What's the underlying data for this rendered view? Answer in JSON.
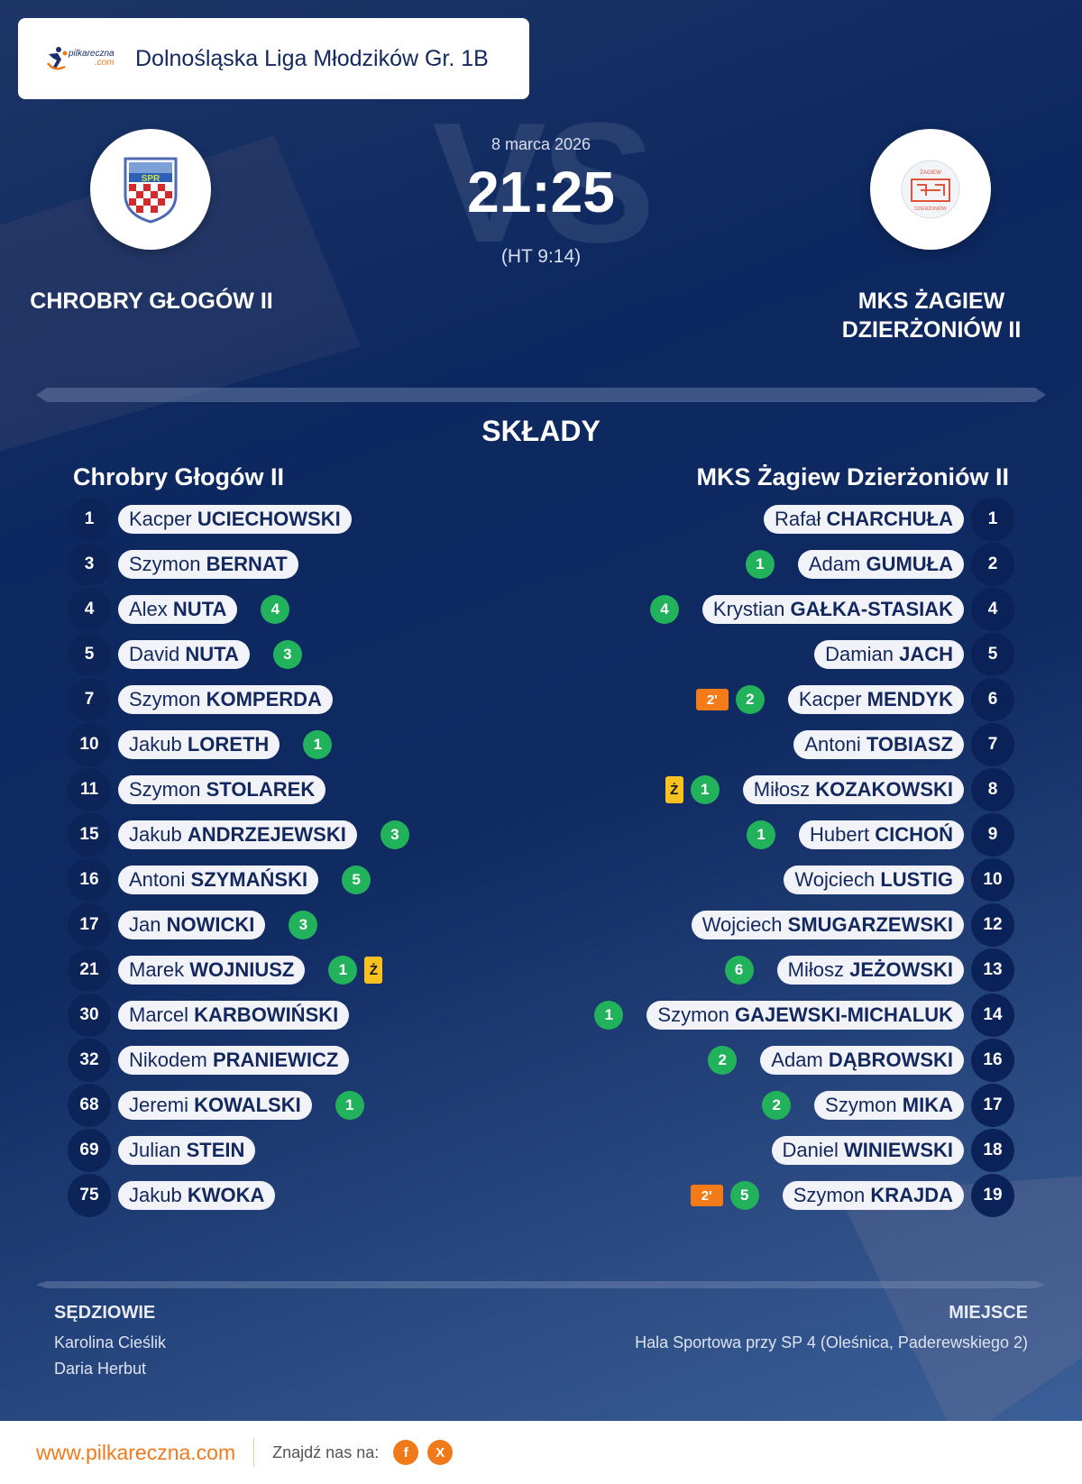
{
  "header": {
    "brand": {
      "name": "pilkareczna",
      "suffix": ".com"
    },
    "league": "Dolnośląska Liga Młodzików Gr. 1B"
  },
  "match": {
    "date": "8 marca 2026",
    "score": "21:25",
    "halftime": "(HT 9:14)",
    "vs_watermark": "VS",
    "home": {
      "name": "CHROBRY GŁOGÓW II",
      "crest": "Chrobry Głogów crest"
    },
    "away": {
      "name": "MKS ŻAGIEW DZIERŻONIÓW II",
      "crest": "Żagiew Dzierżoniów crest"
    }
  },
  "lineups": {
    "title": "SKŁADY",
    "home": {
      "team": "Chrobry Głogów II",
      "players": [
        {
          "num": "1",
          "first": "Kacper",
          "last": "UCIECHOWSKI",
          "goals": null,
          "yellow": false,
          "suspension": null
        },
        {
          "num": "3",
          "first": "Szymon",
          "last": "BERNAT",
          "goals": null,
          "yellow": false,
          "suspension": null
        },
        {
          "num": "4",
          "first": "Alex",
          "last": "NUTA",
          "goals": "4",
          "yellow": false,
          "suspension": null
        },
        {
          "num": "5",
          "first": "David",
          "last": "NUTA",
          "goals": "3",
          "yellow": false,
          "suspension": null
        },
        {
          "num": "7",
          "first": "Szymon",
          "last": "KOMPERDA",
          "goals": null,
          "yellow": false,
          "suspension": null
        },
        {
          "num": "10",
          "first": "Jakub",
          "last": "LORETH",
          "goals": "1",
          "yellow": false,
          "suspension": null
        },
        {
          "num": "11",
          "first": "Szymon",
          "last": "STOLAREK",
          "goals": null,
          "yellow": false,
          "suspension": null
        },
        {
          "num": "15",
          "first": "Jakub",
          "last": "ANDRZEJEWSKI",
          "goals": "3",
          "yellow": false,
          "suspension": null
        },
        {
          "num": "16",
          "first": "Antoni",
          "last": "SZYMAŃSKI",
          "goals": "5",
          "yellow": false,
          "suspension": null
        },
        {
          "num": "17",
          "first": "Jan",
          "last": "NOWICKI",
          "goals": "3",
          "yellow": false,
          "suspension": null
        },
        {
          "num": "21",
          "first": "Marek",
          "last": "WOJNIUSZ",
          "goals": "1",
          "yellow": true,
          "suspension": null
        },
        {
          "num": "30",
          "first": "Marcel",
          "last": "KARBOWIŃSKI",
          "goals": null,
          "yellow": false,
          "suspension": null
        },
        {
          "num": "32",
          "first": "Nikodem",
          "last": "PRANIEWICZ",
          "goals": null,
          "yellow": false,
          "suspension": null
        },
        {
          "num": "68",
          "first": "Jeremi",
          "last": "KOWALSKI",
          "goals": "1",
          "yellow": false,
          "suspension": null
        },
        {
          "num": "69",
          "first": "Julian",
          "last": "STEIN",
          "goals": null,
          "yellow": false,
          "suspension": null
        },
        {
          "num": "75",
          "first": "Jakub",
          "last": "KWOKA",
          "goals": null,
          "yellow": false,
          "suspension": null
        }
      ]
    },
    "away": {
      "team": "MKS Żagiew Dzierżoniów II",
      "players": [
        {
          "num": "1",
          "first": "Rafał",
          "last": "CHARCHUŁA",
          "goals": null,
          "yellow": false,
          "suspension": null
        },
        {
          "num": "2",
          "first": "Adam",
          "last": "GUMUŁA",
          "goals": "1",
          "yellow": false,
          "suspension": null
        },
        {
          "num": "4",
          "first": "Krystian",
          "last": "GAŁKA-STASIAK",
          "goals": "4",
          "yellow": false,
          "suspension": null
        },
        {
          "num": "5",
          "first": "Damian",
          "last": "JACH",
          "goals": null,
          "yellow": false,
          "suspension": null
        },
        {
          "num": "6",
          "first": "Kacper",
          "last": "MENDYK",
          "goals": "2",
          "yellow": false,
          "suspension": "2'"
        },
        {
          "num": "7",
          "first": "Antoni",
          "last": "TOBIASZ",
          "goals": null,
          "yellow": false,
          "suspension": null
        },
        {
          "num": "8",
          "first": "Miłosz",
          "last": "KOZAKOWSKI",
          "goals": "1",
          "yellow": true,
          "suspension": null
        },
        {
          "num": "9",
          "first": "Hubert",
          "last": "CICHOŃ",
          "goals": "1",
          "yellow": false,
          "suspension": null
        },
        {
          "num": "10",
          "first": "Wojciech",
          "last": "LUSTIG",
          "goals": null,
          "yellow": false,
          "suspension": null
        },
        {
          "num": "12",
          "first": "Wojciech",
          "last": "SMUGARZEWSKI",
          "goals": null,
          "yellow": false,
          "suspension": null
        },
        {
          "num": "13",
          "first": "Miłosz",
          "last": "JEŻOWSKI",
          "goals": "6",
          "yellow": false,
          "suspension": null
        },
        {
          "num": "14",
          "first": "Szymon",
          "last": "GAJEWSKI-MICHALUK",
          "goals": "1",
          "yellow": false,
          "suspension": null
        },
        {
          "num": "16",
          "first": "Adam",
          "last": "DĄBROWSKI",
          "goals": "2",
          "yellow": false,
          "suspension": null
        },
        {
          "num": "17",
          "first": "Szymon",
          "last": "MIKA",
          "goals": "2",
          "yellow": false,
          "suspension": null
        },
        {
          "num": "18",
          "first": "Daniel",
          "last": "WINIEWSKI",
          "goals": null,
          "yellow": false,
          "suspension": null
        },
        {
          "num": "19",
          "first": "Szymon",
          "last": "KRAJDA",
          "goals": "5",
          "yellow": false,
          "suspension": "2'"
        }
      ]
    },
    "yellow_card_label": "Ż"
  },
  "officials": {
    "label": "SĘDZIOWIE",
    "referees": [
      "Karolina Cieślik",
      "Daria Herbut"
    ]
  },
  "venue": {
    "label": "MIEJSCE",
    "name": "Hala Sportowa przy SP 4 (Oleśnica, Paderewskiego 2)"
  },
  "footer": {
    "site": "www.pilkareczna.com",
    "find_us": "Znajdź nas na:",
    "social": [
      {
        "icon": "facebook-icon",
        "glyph": "f"
      },
      {
        "icon": "x-icon",
        "glyph": "X"
      }
    ]
  },
  "colors": {
    "navy": "#0d2860",
    "goal_green": "#21b25b",
    "suspension_orange": "#f57a18",
    "yellow_card": "#f7c11f",
    "brand_orange": "#f07a1a"
  }
}
